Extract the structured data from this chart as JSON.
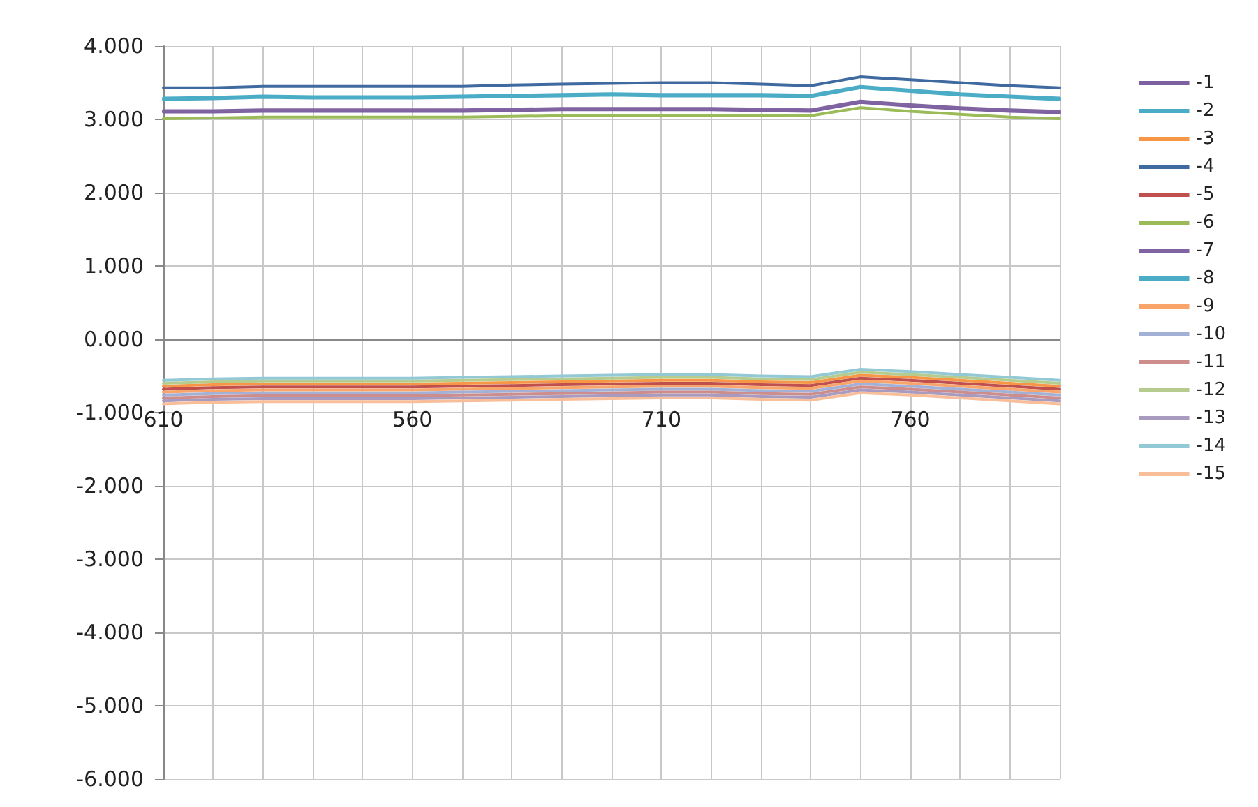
{
  "chart_data": {
    "type": "line",
    "categories": [
      "610",
      null,
      null,
      null,
      null,
      "560",
      null,
      null,
      null,
      null,
      "710",
      null,
      null,
      null,
      null,
      "760",
      null,
      null,
      null
    ],
    "ylim": [
      -6,
      4
    ],
    "yticks": [
      {
        "value": -6,
        "label": "-6.000"
      },
      {
        "value": -5,
        "label": "-5.000"
      },
      {
        "value": -4,
        "label": "-4.000"
      },
      {
        "value": -3,
        "label": "-3.000"
      },
      {
        "value": -2,
        "label": "-2.000"
      },
      {
        "value": -1,
        "label": "-1.000"
      },
      {
        "value": 0,
        "label": "0.000"
      },
      {
        "value": 1,
        "label": "1.000"
      },
      {
        "value": 2,
        "label": "2.000"
      },
      {
        "value": 3,
        "label": "3.000"
      },
      {
        "value": 4,
        "label": "4.000"
      }
    ],
    "grid": true,
    "legend": "right",
    "marker": "none",
    "line_style": "solid",
    "series": [
      {
        "name": "-1",
        "color": "#7d60a0",
        "values": [
          3.1,
          3.1,
          3.11,
          3.11,
          3.11,
          3.11,
          3.11,
          3.12,
          3.13,
          3.13,
          3.13,
          3.13,
          3.12,
          3.11,
          3.23,
          3.18,
          3.14,
          3.11,
          3.09
        ]
      },
      {
        "name": "-2",
        "color": "#4aacc6",
        "values": [
          3.29,
          3.3,
          3.32,
          3.31,
          3.31,
          3.31,
          3.32,
          3.33,
          3.34,
          3.35,
          3.34,
          3.34,
          3.34,
          3.33,
          3.45,
          3.4,
          3.35,
          3.32,
          3.29
        ]
      },
      {
        "name": "-3",
        "color": "#f79646",
        "values": [
          -0.64,
          -0.62,
          -0.61,
          -0.61,
          -0.61,
          -0.61,
          -0.6,
          -0.59,
          -0.58,
          -0.57,
          -0.56,
          -0.56,
          -0.58,
          -0.59,
          -0.49,
          -0.52,
          -0.56,
          -0.6,
          -0.64
        ]
      },
      {
        "name": "-4",
        "color": "#3f6aa0",
        "values": [
          3.43,
          3.43,
          3.45,
          3.45,
          3.45,
          3.45,
          3.45,
          3.47,
          3.48,
          3.49,
          3.5,
          3.5,
          3.48,
          3.46,
          3.58,
          3.54,
          3.5,
          3.46,
          3.43
        ]
      },
      {
        "name": "-5",
        "color": "#c0504d",
        "values": [
          -0.68,
          -0.66,
          -0.65,
          -0.65,
          -0.65,
          -0.65,
          -0.64,
          -0.63,
          -0.62,
          -0.61,
          -0.6,
          -0.6,
          -0.62,
          -0.63,
          -0.53,
          -0.56,
          -0.6,
          -0.64,
          -0.68
        ]
      },
      {
        "name": "-6",
        "color": "#9bbb59",
        "values": [
          3.01,
          3.02,
          3.03,
          3.03,
          3.03,
          3.03,
          3.03,
          3.04,
          3.05,
          3.05,
          3.05,
          3.05,
          3.05,
          3.05,
          3.16,
          3.11,
          3.07,
          3.03,
          3.01
        ]
      },
      {
        "name": "-7",
        "color": "#8064a2",
        "values": [
          3.12,
          3.12,
          3.13,
          3.13,
          3.13,
          3.13,
          3.13,
          3.14,
          3.15,
          3.15,
          3.15,
          3.15,
          3.14,
          3.13,
          3.25,
          3.2,
          3.16,
          3.13,
          3.11
        ]
      },
      {
        "name": "-8",
        "color": "#4bacc6",
        "values": [
          3.27,
          3.28,
          3.3,
          3.29,
          3.29,
          3.29,
          3.3,
          3.31,
          3.32,
          3.33,
          3.32,
          3.32,
          3.32,
          3.31,
          3.43,
          3.38,
          3.33,
          3.3,
          3.27
        ]
      },
      {
        "name": "-9",
        "color": "#f9a46a",
        "values": [
          -0.72,
          -0.7,
          -0.69,
          -0.69,
          -0.69,
          -0.69,
          -0.68,
          -0.67,
          -0.66,
          -0.65,
          -0.64,
          -0.64,
          -0.66,
          -0.67,
          -0.57,
          -0.6,
          -0.64,
          -0.68,
          -0.72
        ]
      },
      {
        "name": "-10",
        "color": "#a3b1d6",
        "values": [
          -0.76,
          -0.74,
          -0.73,
          -0.73,
          -0.73,
          -0.73,
          -0.72,
          -0.71,
          -0.7,
          -0.69,
          -0.68,
          -0.68,
          -0.7,
          -0.71,
          -0.61,
          -0.64,
          -0.68,
          -0.72,
          -0.76
        ]
      },
      {
        "name": "-11",
        "color": "#cd8d8c",
        "values": [
          -0.8,
          -0.78,
          -0.77,
          -0.77,
          -0.77,
          -0.77,
          -0.76,
          -0.75,
          -0.74,
          -0.73,
          -0.72,
          -0.72,
          -0.74,
          -0.75,
          -0.65,
          -0.68,
          -0.72,
          -0.76,
          -0.8
        ]
      },
      {
        "name": "-12",
        "color": "#b5cc8e",
        "values": [
          -0.6,
          -0.58,
          -0.57,
          -0.57,
          -0.57,
          -0.57,
          -0.56,
          -0.55,
          -0.54,
          -0.53,
          -0.52,
          -0.52,
          -0.54,
          -0.55,
          -0.45,
          -0.48,
          -0.52,
          -0.56,
          -0.6
        ]
      },
      {
        "name": "-13",
        "color": "#a89bbf",
        "values": [
          -0.84,
          -0.82,
          -0.81,
          -0.81,
          -0.81,
          -0.81,
          -0.8,
          -0.79,
          -0.78,
          -0.77,
          -0.76,
          -0.76,
          -0.78,
          -0.79,
          -0.69,
          -0.72,
          -0.76,
          -0.8,
          -0.84
        ]
      },
      {
        "name": "-14",
        "color": "#93c8d5",
        "values": [
          -0.56,
          -0.54,
          -0.53,
          -0.53,
          -0.53,
          -0.53,
          -0.52,
          -0.51,
          -0.5,
          -0.49,
          -0.48,
          -0.48,
          -0.5,
          -0.51,
          -0.41,
          -0.44,
          -0.48,
          -0.52,
          -0.56
        ]
      },
      {
        "name": "-15",
        "color": "#f8be9a",
        "values": [
          -0.88,
          -0.86,
          -0.85,
          -0.85,
          -0.85,
          -0.85,
          -0.84,
          -0.83,
          -0.82,
          -0.81,
          -0.8,
          -0.8,
          -0.82,
          -0.83,
          -0.73,
          -0.76,
          -0.8,
          -0.84,
          -0.88
        ]
      }
    ]
  }
}
